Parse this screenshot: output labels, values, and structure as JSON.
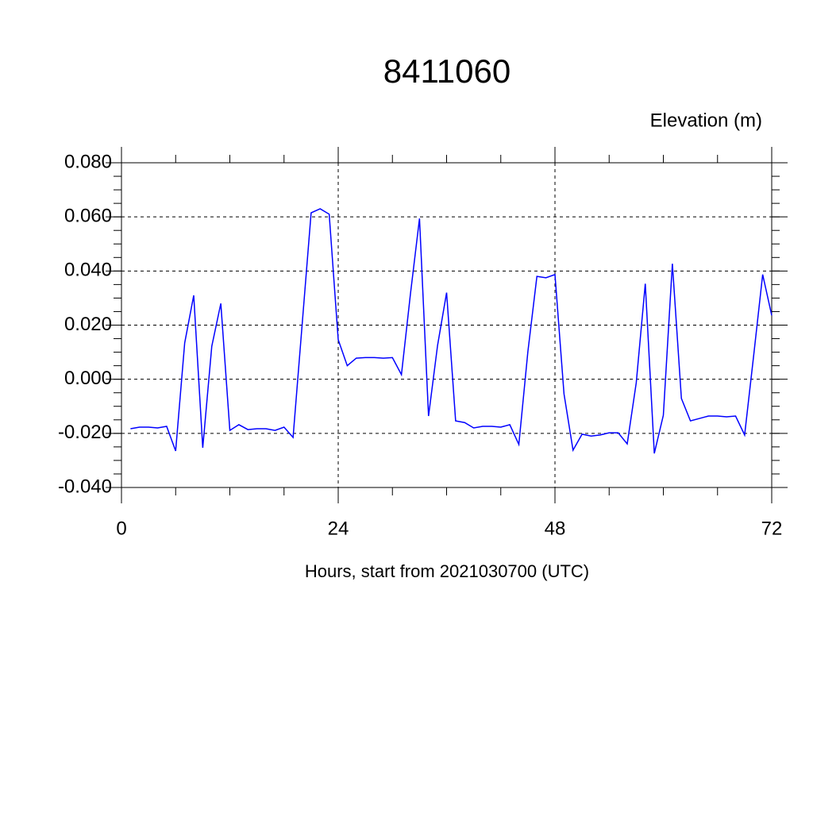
{
  "chart_data": {
    "type": "line",
    "title": "8411060",
    "y_label": "Elevation (m)",
    "x_label": "Hours, start from 2021030700 (UTC)",
    "x": [
      1,
      2,
      3,
      4,
      5,
      6,
      7,
      8,
      9,
      10,
      11,
      12,
      13,
      14,
      15,
      16,
      17,
      18,
      19,
      20,
      21,
      22,
      23,
      24,
      25,
      26,
      27,
      28,
      29,
      30,
      31,
      32,
      33,
      34,
      35,
      36,
      37,
      38,
      39,
      40,
      41,
      42,
      43,
      44,
      45,
      46,
      47,
      48,
      49,
      50,
      51,
      52,
      53,
      54,
      55,
      56,
      57,
      58,
      59,
      60,
      61,
      62,
      63,
      64,
      65,
      66,
      67,
      68,
      69,
      70,
      71,
      72
    ],
    "series": [
      {
        "color": "#0000ff",
        "values": [
          -0.0183,
          -0.0177,
          -0.0177,
          -0.018,
          -0.0174,
          -0.0265,
          0.0134,
          0.031,
          -0.0253,
          0.0122,
          0.028,
          -0.0189,
          -0.0168,
          -0.0186,
          -0.0183,
          -0.0183,
          -0.0189,
          -0.0177,
          -0.0215,
          0.02,
          0.0615,
          0.063,
          0.061,
          0.0146,
          0.005,
          0.0078,
          0.008,
          0.008,
          0.0078,
          0.008,
          0.0017,
          0.0316,
          0.0594,
          -0.0136,
          0.0125,
          0.032,
          -0.0154,
          -0.016,
          -0.018,
          -0.0174,
          -0.0174,
          -0.0177,
          -0.0168,
          -0.0241,
          0.0102,
          0.038,
          0.0375,
          0.0387,
          -0.0054,
          -0.0262,
          -0.0203,
          -0.021,
          -0.0206,
          -0.0198,
          -0.0198,
          -0.0239,
          -0.0013,
          0.0353,
          -0.0274,
          -0.0133,
          0.0427,
          -0.0071,
          -0.0154,
          -0.0145,
          -0.0136,
          -0.0136,
          -0.0139,
          -0.0136,
          -0.0206,
          0.0087,
          0.0387,
          0.0236
        ]
      }
    ],
    "xlim": [
      0,
      72
    ],
    "xticks": [
      0,
      24,
      48,
      72
    ],
    "ylim": [
      -0.04,
      0.08
    ],
    "yticks": [
      {
        "value": -0.04,
        "label": "-0.040"
      },
      {
        "value": -0.02,
        "label": "-0.020"
      },
      {
        "value": 0,
        "label": "0.000"
      },
      {
        "value": 0.02,
        "label": "0.020"
      },
      {
        "value": 0.04,
        "label": "0.040"
      },
      {
        "value": 0.06,
        "label": "0.060"
      },
      {
        "value": 0.08,
        "label": "0.080"
      }
    ],
    "grid": true
  }
}
